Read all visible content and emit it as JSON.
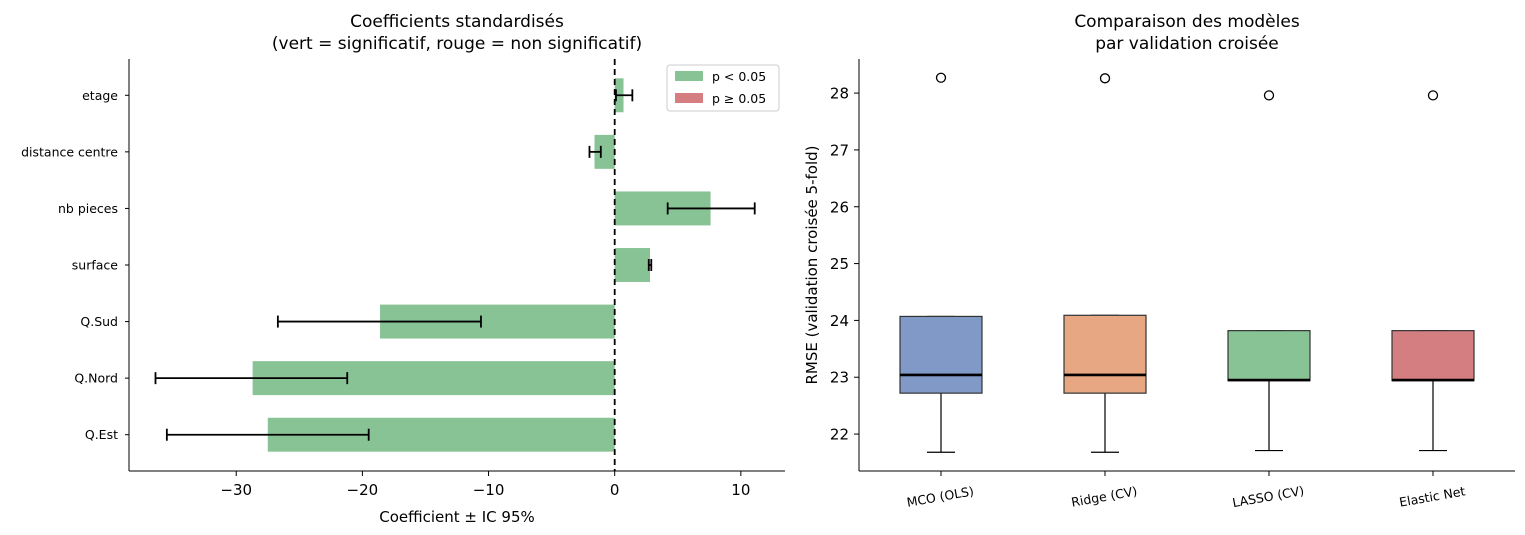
{
  "chart_data": [
    {
      "type": "bar",
      "orientation": "horizontal",
      "title": "Coefficients standardisés\n(vert = significatif, rouge = non significatif)",
      "xlabel": "Coefficient ± IC 95%",
      "ylabel": "",
      "xlim": [
        -38.5,
        13.5
      ],
      "xticks": [
        -30,
        -20,
        -10,
        0,
        10
      ],
      "xtick_labels": [
        "−30",
        "−20",
        "−10",
        "0",
        "10"
      ],
      "reference_line": 0,
      "legend_position": "top-right",
      "legend": [
        {
          "label": "p < 0.05",
          "color": "#88c395"
        },
        {
          "label": "p ≥ 0.05",
          "color": "#d47e82"
        }
      ],
      "categories": [
        "etage",
        "distance centre",
        "nb pieces",
        "surface",
        "Q.Sud",
        "Q.Nord",
        "Q.Est"
      ],
      "values": [
        0.7,
        -1.6,
        7.6,
        2.8,
        -18.6,
        -28.7,
        -27.5
      ],
      "ci_low": [
        0.1,
        -2.0,
        4.2,
        2.7,
        -26.7,
        -36.4,
        -35.5
      ],
      "ci_high": [
        1.4,
        -1.1,
        11.1,
        2.9,
        -10.6,
        -21.2,
        -19.5
      ],
      "significant": [
        true,
        true,
        true,
        true,
        true,
        true,
        true
      ],
      "colors": {
        "significant": "#88c395",
        "not_significant": "#d47e82"
      }
    },
    {
      "type": "box",
      "title": "Comparaison des modèles\npar validation croisée",
      "xlabel": "",
      "ylabel": "RMSE (validation croisée 5-fold)",
      "ylim": [
        21.35,
        28.6
      ],
      "yticks": [
        22,
        23,
        24,
        25,
        26,
        27,
        28
      ],
      "categories": [
        "MCO (OLS)",
        "Ridge (CV)",
        "LASSO (CV)",
        "Elastic Net"
      ],
      "boxes": [
        {
          "name": "MCO (OLS)",
          "whisker_low": 21.68,
          "q1": 22.72,
          "median": 23.04,
          "q3": 24.07,
          "whisker_high": 24.07,
          "outliers": [
            28.27
          ],
          "color": "#8099c6"
        },
        {
          "name": "Ridge (CV)",
          "whisker_low": 21.68,
          "q1": 22.72,
          "median": 23.04,
          "q3": 24.09,
          "whisker_high": 24.09,
          "outliers": [
            28.26
          ],
          "color": "#e6a782"
        },
        {
          "name": "LASSO (CV)",
          "whisker_low": 21.71,
          "q1": 22.94,
          "median": 22.95,
          "q3": 23.82,
          "whisker_high": 23.82,
          "outliers": [
            27.96
          ],
          "color": "#88c395"
        },
        {
          "name": "Elastic Net",
          "whisker_low": 21.71,
          "q1": 22.94,
          "median": 22.95,
          "q3": 23.82,
          "whisker_high": 23.82,
          "outliers": [
            27.96
          ],
          "color": "#d47e82"
        }
      ]
    }
  ]
}
